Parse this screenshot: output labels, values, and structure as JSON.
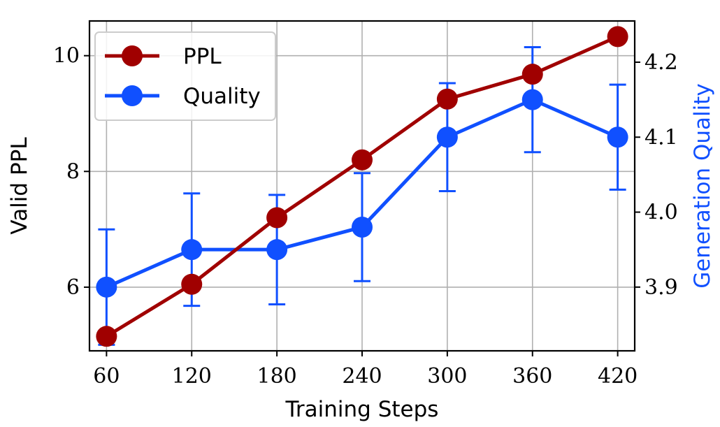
{
  "chart_data": {
    "type": "line",
    "x": [
      60,
      120,
      180,
      240,
      300,
      360,
      420
    ],
    "xlabel": "Training Steps",
    "ylabel_left": "Valid PPL",
    "ylabel_right": "Generation Quality",
    "xlim": [
      48,
      432
    ],
    "ylim_left": [
      4.9,
      10.6
    ],
    "ylim_right": [
      3.815,
      4.255
    ],
    "xticks": [
      "60",
      "120",
      "180",
      "240",
      "300",
      "360",
      "420"
    ],
    "yticks_left": [
      "6",
      "8",
      "10"
    ],
    "yticks_left_values": [
      6,
      8,
      10
    ],
    "yticks_right": [
      "3.9",
      "4.0",
      "4.1",
      "4.2"
    ],
    "yticks_right_values": [
      3.9,
      4.0,
      4.1,
      4.2
    ],
    "grid": true,
    "legend_position": "upper-left",
    "series": [
      {
        "name": "PPL",
        "axis": "left",
        "color": "#a00000",
        "values": [
          5.15,
          6.05,
          7.2,
          8.2,
          9.25,
          9.68,
          10.33
        ]
      },
      {
        "name": "Quality",
        "axis": "right",
        "color": "#1050ff",
        "values": [
          3.9,
          3.95,
          3.95,
          3.98,
          4.1,
          4.15,
          4.1
        ],
        "error": [
          0.077,
          0.075,
          0.073,
          0.072,
          0.072,
          0.07,
          0.07
        ]
      }
    ]
  }
}
